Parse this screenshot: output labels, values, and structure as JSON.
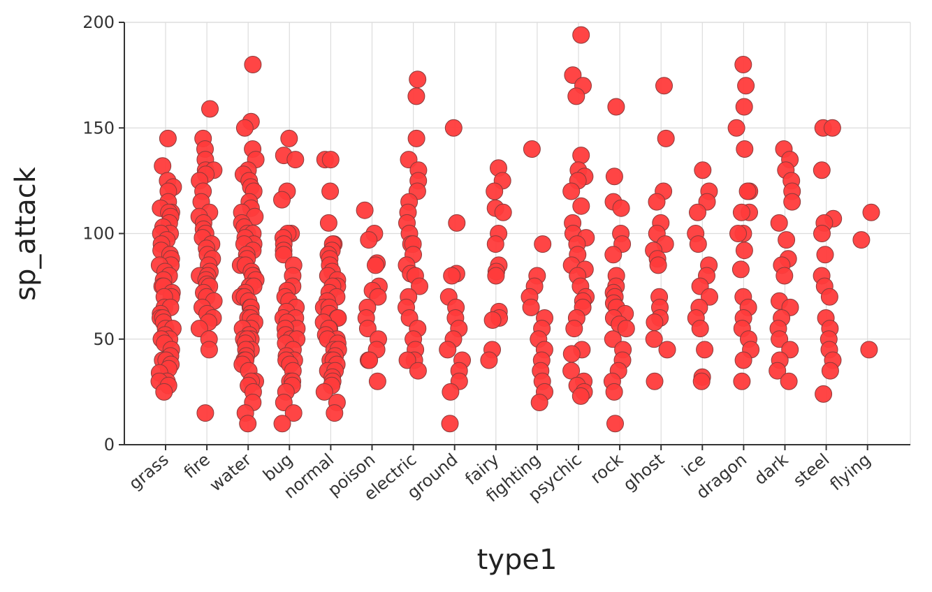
{
  "chart_data": {
    "type": "scatter",
    "title": "",
    "xlabel": "type1",
    "ylabel": "sp_attack",
    "ylim": [
      0,
      200
    ],
    "yticks": [
      "0",
      "50",
      "100",
      "150",
      "200"
    ],
    "grid": true,
    "legend": "none",
    "point_color": "#ff3b3b",
    "point_stroke": "#8a3a3a",
    "categories": [
      "grass",
      "fire",
      "water",
      "bug",
      "normal",
      "poison",
      "electric",
      "ground",
      "fairy",
      "fighting",
      "psychic",
      "rock",
      "ghost",
      "ice",
      "dragon",
      "dark",
      "steel",
      "flying"
    ],
    "points": {
      "grass": [
        145,
        132,
        125,
        122,
        120,
        115,
        112,
        110,
        110,
        108,
        105,
        103,
        100,
        100,
        97,
        95,
        92,
        90,
        88,
        85,
        85,
        82,
        80,
        78,
        75,
        75,
        72,
        70,
        70,
        65,
        65,
        62,
        60,
        60,
        58,
        55,
        55,
        52,
        50,
        50,
        48,
        45,
        42,
        40,
        40,
        38,
        36,
        34,
        30,
        30,
        28,
        25
      ],
      "fire": [
        159,
        145,
        140,
        135,
        130,
        130,
        128,
        125,
        120,
        115,
        110,
        108,
        105,
        102,
        100,
        98,
        95,
        93,
        90,
        88,
        85,
        82,
        80,
        80,
        78,
        76,
        75,
        72,
        70,
        68,
        65,
        62,
        60,
        58,
        55,
        50,
        45,
        15
      ],
      "water": [
        180,
        153,
        150,
        140,
        135,
        130,
        128,
        125,
        122,
        120,
        115,
        112,
        110,
        108,
        105,
        103,
        100,
        100,
        98,
        95,
        95,
        92,
        90,
        88,
        85,
        85,
        82,
        80,
        80,
        78,
        75,
        75,
        72,
        70,
        70,
        68,
        65,
        65,
        62,
        60,
        60,
        58,
        55,
        55,
        52,
        50,
        50,
        50,
        48,
        45,
        45,
        42,
        40,
        40,
        38,
        35,
        30,
        30,
        28,
        25,
        20,
        15,
        10
      ],
      "bug": [
        145,
        137,
        135,
        120,
        116,
        100,
        100,
        98,
        95,
        92,
        90,
        85,
        80,
        75,
        73,
        70,
        68,
        65,
        63,
        60,
        60,
        58,
        55,
        55,
        52,
        50,
        50,
        48,
        45,
        42,
        40,
        40,
        38,
        35,
        30,
        30,
        28,
        25,
        20,
        15,
        10
      ],
      "normal": [
        135,
        135,
        120,
        105,
        95,
        95,
        92,
        90,
        88,
        85,
        82,
        80,
        78,
        75,
        75,
        72,
        70,
        68,
        65,
        65,
        62,
        60,
        60,
        58,
        55,
        55,
        52,
        50,
        50,
        48,
        45,
        45,
        42,
        40,
        40,
        38,
        35,
        35,
        32,
        30,
        28,
        25,
        20,
        15
      ],
      "poison": [
        111,
        100,
        97,
        86,
        85,
        75,
        73,
        70,
        65,
        60,
        55,
        50,
        45,
        40,
        40,
        30
      ],
      "electric": [
        173,
        165,
        145,
        135,
        130,
        125,
        120,
        115,
        110,
        105,
        100,
        95,
        95,
        90,
        85,
        81,
        80,
        75,
        70,
        65,
        60,
        55,
        50,
        45,
        40,
        40,
        35
      ],
      "ground": [
        150,
        105,
        81,
        80,
        70,
        65,
        60,
        55,
        50,
        45,
        40,
        35,
        30,
        25,
        10
      ],
      "fairy": [
        131,
        125,
        120,
        112,
        110,
        100,
        95,
        85,
        82,
        80,
        63,
        60,
        59,
        45,
        40
      ],
      "fighting": [
        140,
        95,
        80,
        75,
        70,
        65,
        60,
        55,
        50,
        45,
        40,
        35,
        30,
        25,
        20
      ],
      "psychic": [
        194,
        175,
        170,
        165,
        137,
        130,
        127,
        125,
        120,
        113,
        105,
        100,
        98,
        95,
        90,
        85,
        83,
        80,
        75,
        70,
        68,
        65,
        60,
        55,
        45,
        43,
        35,
        30,
        28,
        25,
        23
      ],
      "rock": [
        160,
        127,
        115,
        112,
        100,
        95,
        90,
        80,
        75,
        72,
        70,
        67,
        65,
        62,
        60,
        57,
        55,
        50,
        45,
        40,
        35,
        30,
        25,
        10
      ],
      "ghost": [
        170,
        145,
        120,
        115,
        105,
        100,
        95,
        92,
        88,
        85,
        70,
        65,
        60,
        58,
        50,
        45,
        30
      ],
      "ice": [
        130,
        120,
        115,
        110,
        100,
        95,
        85,
        80,
        75,
        70,
        65,
        60,
        55,
        45,
        32,
        30
      ],
      "dragon": [
        180,
        170,
        160,
        150,
        140,
        120,
        120,
        110,
        110,
        100,
        100,
        92,
        83,
        70,
        65,
        60,
        55,
        50,
        45,
        40,
        30
      ],
      "dark": [
        140,
        135,
        130,
        125,
        120,
        115,
        105,
        97,
        88,
        85,
        80,
        68,
        65,
        60,
        55,
        50,
        45,
        40,
        35,
        30
      ],
      "steel": [
        150,
        150,
        130,
        107,
        105,
        100,
        90,
        80,
        75,
        70,
        60,
        55,
        50,
        45,
        40,
        35,
        24
      ],
      "flying": [
        110,
        97,
        45
      ]
    }
  }
}
